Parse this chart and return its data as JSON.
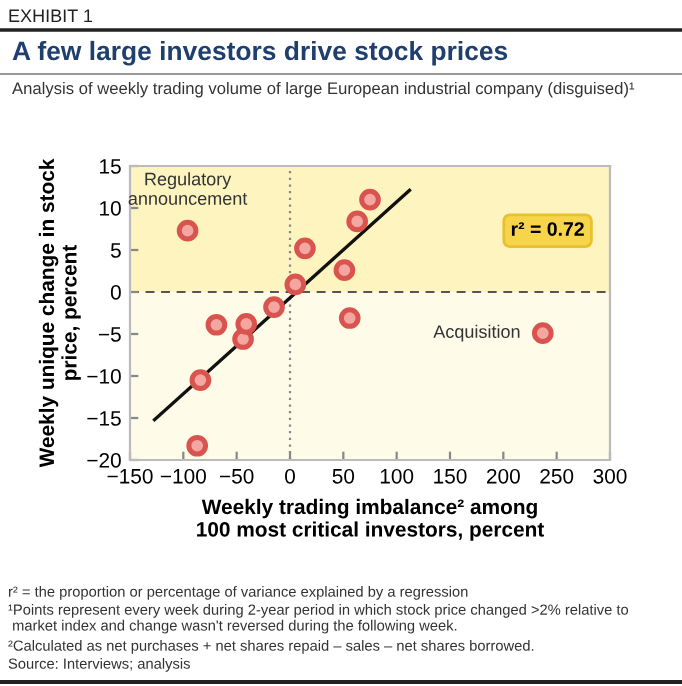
{
  "chart_data": {
    "type": "scatter",
    "title": "A few large investors drive stock prices",
    "subtitle": "Analysis of weekly trading volume of large European industrial company (disguised)¹",
    "xlabel": "Weekly trading imbalance² among\n100 most critical investors, percent",
    "ylabel": "Weekly unique change in stock\nprice, percent",
    "series": [
      {
        "color": "#d9534f",
        "x": [
          -96,
          -87,
          -84,
          -69,
          -44,
          -41,
          -15,
          5,
          14,
          51,
          56,
          63,
          75,
          237
        ],
        "values": [
          7.3,
          -18.3,
          -10.5,
          -3.9,
          -5.6,
          -3.8,
          -1.8,
          0.9,
          5.2,
          2.6,
          -3.1,
          8.4,
          11,
          -4.9
        ]
      },
      {
        "type": "line",
        "color": "#111111",
        "marker": "none",
        "x": [
          -127,
          112
        ],
        "values": [
          -15.2,
          12.1
        ]
      }
    ],
    "marker": "circle",
    "xlim": [
      -150,
      300
    ],
    "xticks": [
      -150,
      -100,
      -50,
      0,
      50,
      100,
      150,
      200,
      250,
      300
    ],
    "ylim": [
      -20,
      15
    ],
    "yticks": [
      -20,
      -15,
      -10,
      -5,
      0,
      5,
      10,
      15
    ],
    "grid": false,
    "ref_lines": [
      {
        "axis": "y",
        "value": 0,
        "line_style": "dashed",
        "color": "#555555"
      },
      {
        "axis": "x",
        "value": 0,
        "line_style": "dotted",
        "color": "#888888"
      }
    ],
    "bands": [
      {
        "axis": "y",
        "from": 0,
        "to": 15,
        "color": "#fdf4c0"
      },
      {
        "axis": "y",
        "from": -20,
        "to": 0,
        "color": "#fefbe8"
      }
    ],
    "annotations": [
      "EXHIBIT 1",
      {
        "text": "Regulatory\nannouncement",
        "x": -96,
        "y": 7.3
      },
      {
        "text": "Acquisition",
        "x": 237,
        "y": -4.9
      },
      "r² = 0.72",
      "r² = the proportion or percentage of variance explained by a regression",
      "¹Points represent every week during 2-year period in which stock price changed >2% relative to\n market index and change wasn't reversed during the following week.",
      "²Calculated as net purchases + net shares repaid – sales – net shares borrowed.",
      "Source: Interviews; analysis"
    ]
  }
}
